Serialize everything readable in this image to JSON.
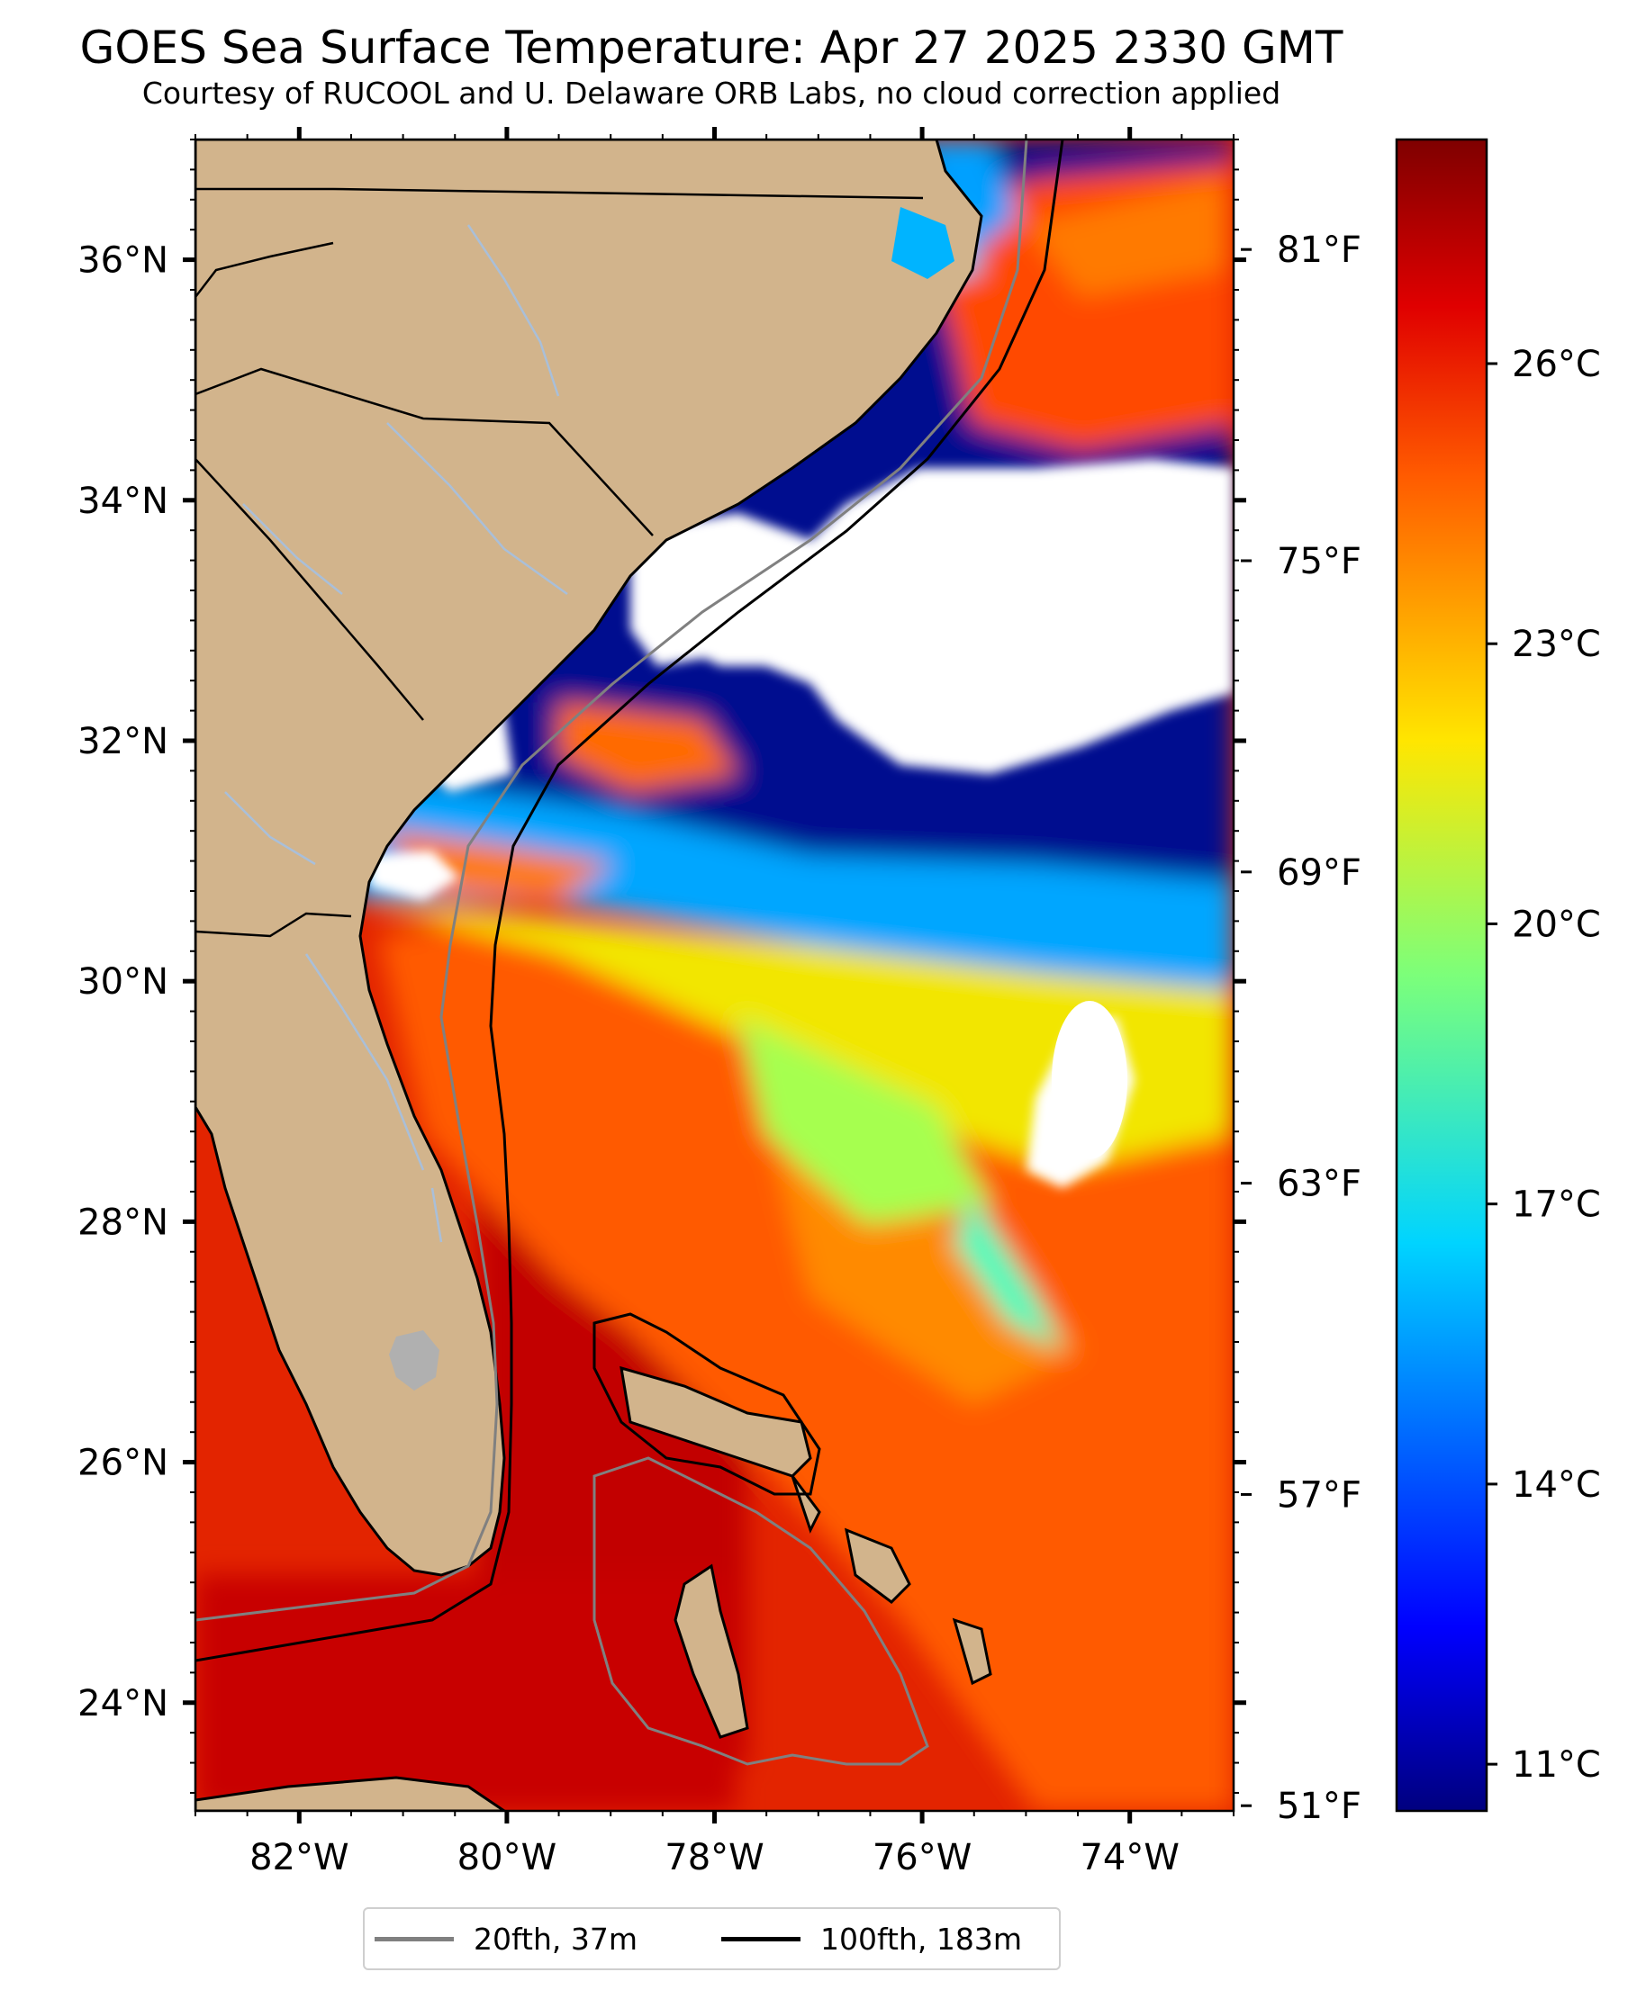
{
  "title": "GOES Sea Surface Temperature: Apr 27 2025 2330 GMT",
  "subtitle": "Courtesy of RUCOOL and U. Delaware ORB Labs, no cloud correction applied",
  "map": {
    "lon_range": [
      -83,
      -73
    ],
    "lat_range": [
      23.1,
      37
    ],
    "lon_ticks": [
      "82°W",
      "80°W",
      "78°W",
      "76°W",
      "74°W"
    ],
    "lat_ticks": [
      "24°N",
      "26°N",
      "28°N",
      "30°N",
      "32°N",
      "34°N",
      "36°N"
    ],
    "fahrenheit_ticks": [
      "51°F",
      "57°F",
      "63°F",
      "69°F",
      "75°F",
      "81°F"
    ],
    "colors": {
      "land": "#d2b48c",
      "ocean_warm": "#e31a00",
      "cloud": "#ffffff",
      "cold": "#000a8f",
      "river": "#a9bfd9",
      "lake": "#b0b0b0"
    }
  },
  "colorbar": {
    "range_c": [
      10.5,
      28.4
    ],
    "ticks": [
      "11°C",
      "14°C",
      "17°C",
      "20°C",
      "23°C",
      "26°C"
    ],
    "colormap": "jet"
  },
  "legend": {
    "items": [
      {
        "label": "20fth, 37m",
        "color": "#808080"
      },
      {
        "label": "100fth, 183m",
        "color": "#000000"
      }
    ]
  }
}
